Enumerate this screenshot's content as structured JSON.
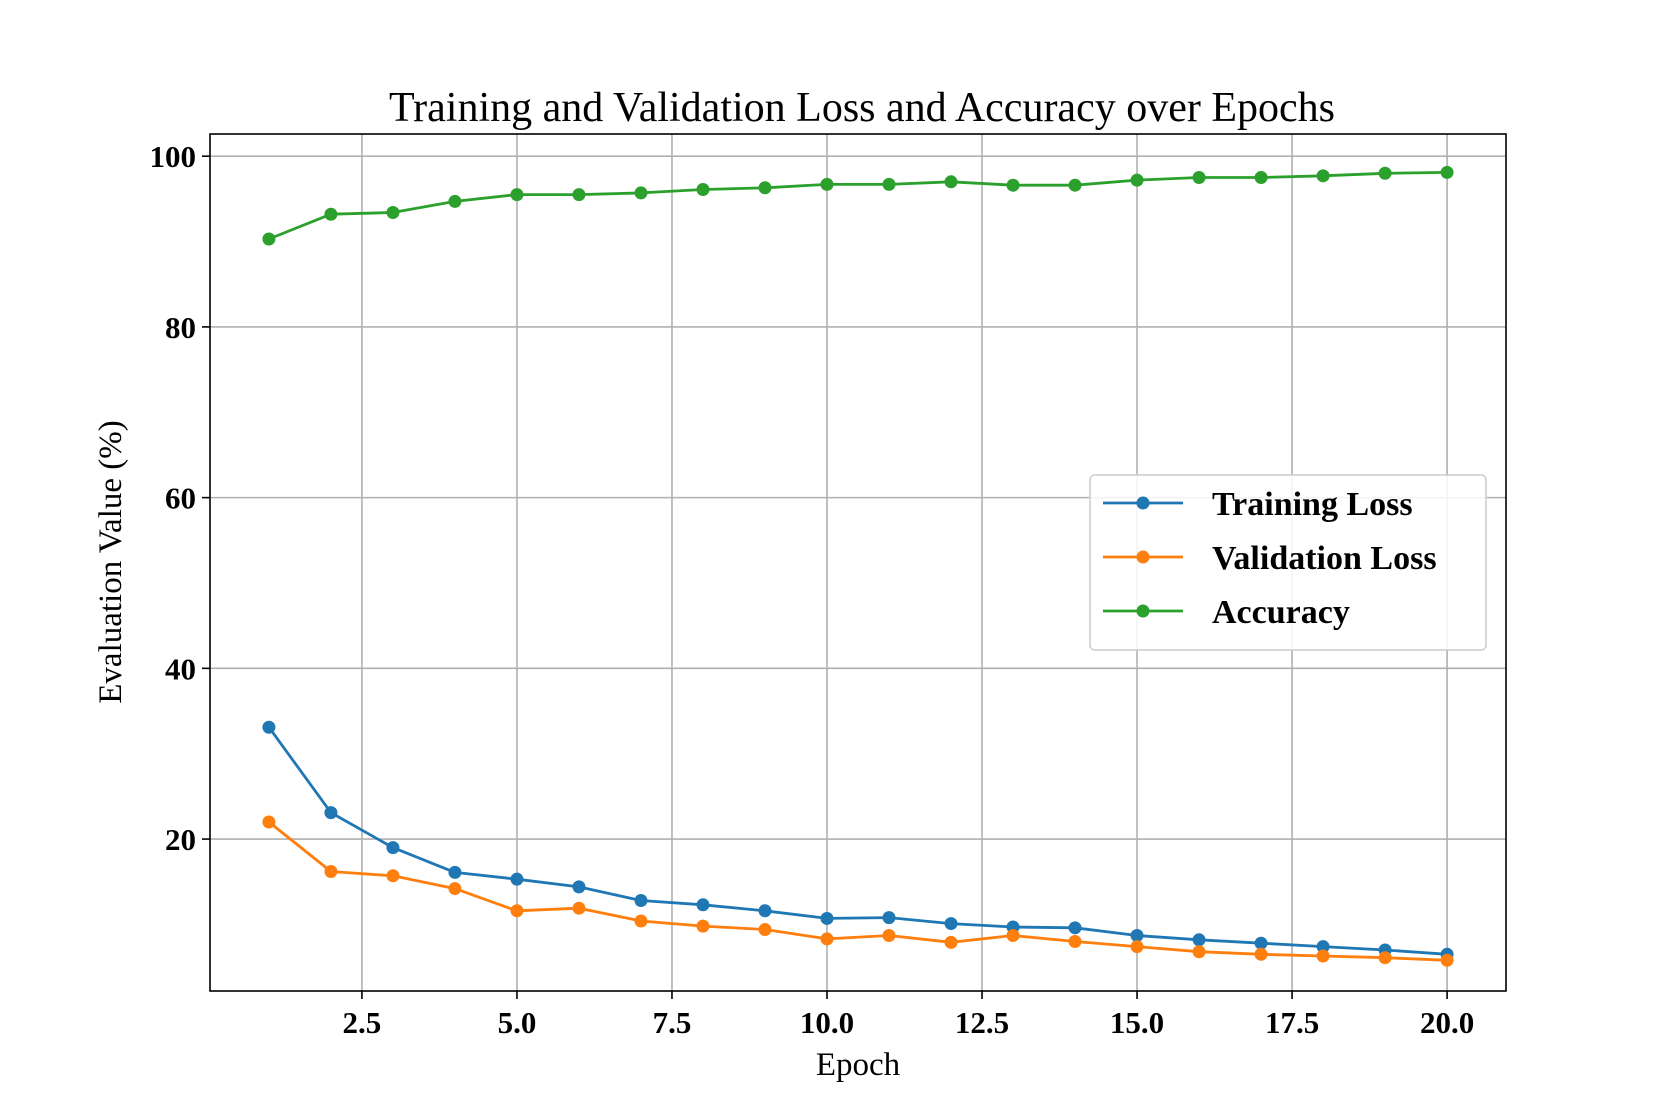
{
  "chart_data": {
    "type": "line",
    "title": "Training and Validation Loss and Accuracy over Epochs",
    "xlabel": "Epoch",
    "ylabel": "Evaluation Value (%)",
    "x": [
      1,
      2,
      3,
      4,
      5,
      6,
      7,
      8,
      9,
      10,
      11,
      12,
      13,
      14,
      15,
      16,
      17,
      18,
      19,
      20
    ],
    "xlim": [
      0.05,
      20.95
    ],
    "ylim": [
      2.2,
      102.6
    ],
    "xticks": [
      2.5,
      5.0,
      7.5,
      10.0,
      12.5,
      15.0,
      17.5,
      20.0
    ],
    "xtick_labels": [
      "2.5",
      "5.0",
      "7.5",
      "10.0",
      "12.5",
      "15.0",
      "17.5",
      "20.0"
    ],
    "yticks": [
      20,
      40,
      60,
      80,
      100
    ],
    "ytick_labels": [
      "20",
      "40",
      "60",
      "80",
      "100"
    ],
    "grid": true,
    "legend_position": "center-right",
    "series": [
      {
        "name": "Training Loss",
        "color": "#1f77b4",
        "marker": "circle",
        "values": [
          33.1,
          23.1,
          19.0,
          16.1,
          15.3,
          14.4,
          12.8,
          12.3,
          11.6,
          10.7,
          10.8,
          10.1,
          9.7,
          9.6,
          8.7,
          8.2,
          7.8,
          7.4,
          7.0,
          6.5
        ]
      },
      {
        "name": "Validation Loss",
        "color": "#ff7f0e",
        "marker": "circle",
        "values": [
          22.0,
          16.2,
          15.7,
          14.2,
          11.6,
          11.9,
          10.4,
          9.8,
          9.4,
          8.3,
          8.7,
          7.9,
          8.7,
          8.0,
          7.4,
          6.8,
          6.5,
          6.3,
          6.1,
          5.8
        ]
      },
      {
        "name": "Accuracy",
        "color": "#2ca02c",
        "marker": "circle",
        "values": [
          90.3,
          93.2,
          93.4,
          94.7,
          95.5,
          95.5,
          95.7,
          96.1,
          96.3,
          96.7,
          96.7,
          97.0,
          96.6,
          96.6,
          97.2,
          97.5,
          97.5,
          97.7,
          98.0,
          98.1
        ]
      }
    ]
  }
}
